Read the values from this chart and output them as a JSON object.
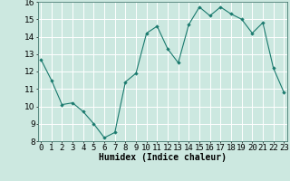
{
  "x": [
    0,
    1,
    2,
    3,
    4,
    5,
    6,
    7,
    8,
    9,
    10,
    11,
    12,
    13,
    14,
    15,
    16,
    17,
    18,
    19,
    20,
    21,
    22,
    23
  ],
  "y": [
    12.7,
    11.5,
    10.1,
    10.2,
    9.7,
    9.0,
    8.2,
    8.5,
    11.4,
    11.9,
    14.2,
    14.6,
    13.3,
    12.5,
    14.7,
    15.7,
    15.2,
    15.7,
    15.3,
    15.0,
    14.2,
    14.8,
    12.2,
    10.8
  ],
  "line_color": "#1a7a6e",
  "marker_color": "#1a7a6e",
  "bg_color": "#cce8e0",
  "grid_color": "#ffffff",
  "xlabel": "Humidex (Indice chaleur)",
  "ylim": [
    8,
    16
  ],
  "xlim": [
    -0.3,
    23.3
  ],
  "yticks": [
    8,
    9,
    10,
    11,
    12,
    13,
    14,
    15,
    16
  ],
  "xticks": [
    0,
    1,
    2,
    3,
    4,
    5,
    6,
    7,
    8,
    9,
    10,
    11,
    12,
    13,
    14,
    15,
    16,
    17,
    18,
    19,
    20,
    21,
    22,
    23
  ],
  "xlabel_fontsize": 7,
  "tick_fontsize": 6.5,
  "ylabel_fontsize": 6.5
}
